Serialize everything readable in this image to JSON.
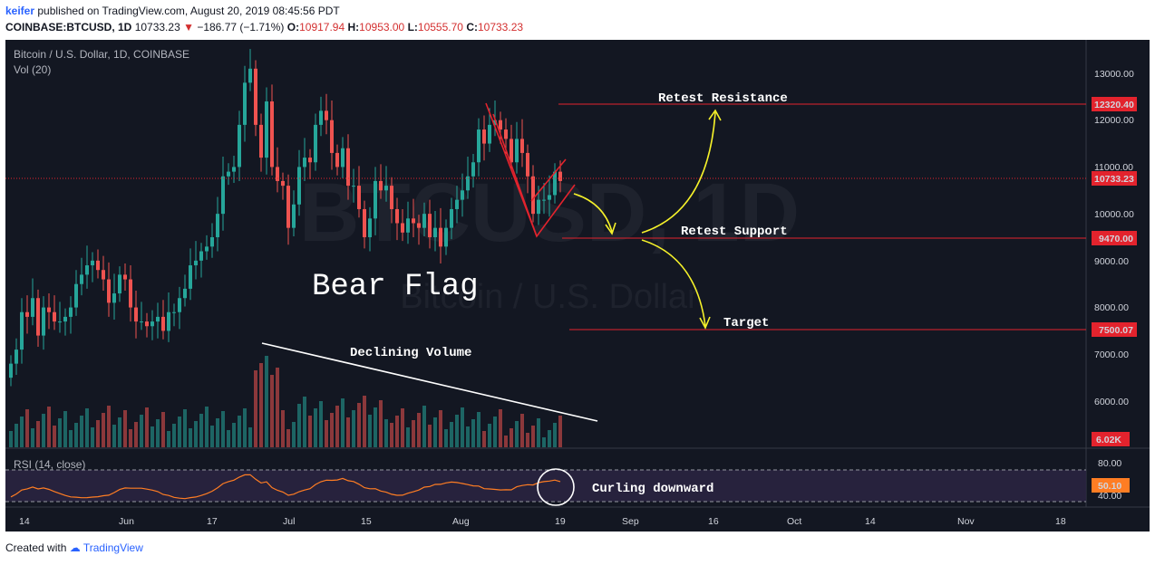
{
  "header": {
    "author": "keifer",
    "published": "published on TradingView.com, August 20, 2019 08:45:56 PDT",
    "symbol": "COINBASE:BTCUSD, 1D",
    "last": "10733.23",
    "change": "−186.77 (−1.71%)",
    "o_label": "O:",
    "o_value": "10917.94",
    "h_label": "H:",
    "h_value": "10953.00",
    "l_label": "L:",
    "l_value": "10555.70",
    "c_label": "C:",
    "c_value": "10733.23"
  },
  "chart": {
    "legend_title": "Bitcoin / U.S. Dollar, 1D, COINBASE",
    "legend_vol": "Vol (20)",
    "watermark_big": "BTCUSD, 1D",
    "watermark_small": "Bitcoin / U.S. Dollar",
    "rsi_label": "RSI (14, close)",
    "price_ticks": [
      "13000.00",
      "12000.00",
      "11000.00",
      "10000.00",
      "9000.00",
      "8000.00",
      "7000.00",
      "6000.00"
    ],
    "rsi_ticks": [
      "80.00",
      "40.00"
    ],
    "price_tags": [
      {
        "value": "12320.40",
        "color": "#e3232d"
      },
      {
        "value": "10733.23",
        "color": "#e3232d"
      },
      {
        "value": "9470.00",
        "color": "#e3232d"
      },
      {
        "value": "7500.07",
        "color": "#e3232d"
      }
    ],
    "vol_tag": "6.02K",
    "rsi_tag": "50.10",
    "time_labels": [
      "14",
      "Jun",
      "17",
      "Jul",
      "15",
      "Aug",
      "19",
      "Sep",
      "16",
      "Oct",
      "14",
      "Nov",
      "18"
    ]
  },
  "annotations": {
    "retest_resistance": "Retest Resistance",
    "retest_support": "Retest Support",
    "target": "Target",
    "bear_flag": "Bear Flag",
    "declining_volume": "Declining Volume",
    "curling_downward": "Curling downward"
  },
  "footer": {
    "created_with": "Created with",
    "brand": "TradingView"
  },
  "chart_data": {
    "type": "candlestick",
    "title": "Bitcoin / U.S. Dollar, 1D, COINBASE",
    "price_levels": {
      "resistance": 12320.4,
      "last": 10733.23,
      "support": 9470.0,
      "target": 7500.07
    },
    "ylim": [
      5300,
      13600
    ],
    "rsi_last": 50.1,
    "rsi_bands": [
      70,
      30
    ],
    "volume_last": "6.02K",
    "colors": {
      "up": "#26a69a",
      "down": "#ef5350",
      "background": "#131722",
      "rsi_line": "#ff7d23"
    }
  }
}
